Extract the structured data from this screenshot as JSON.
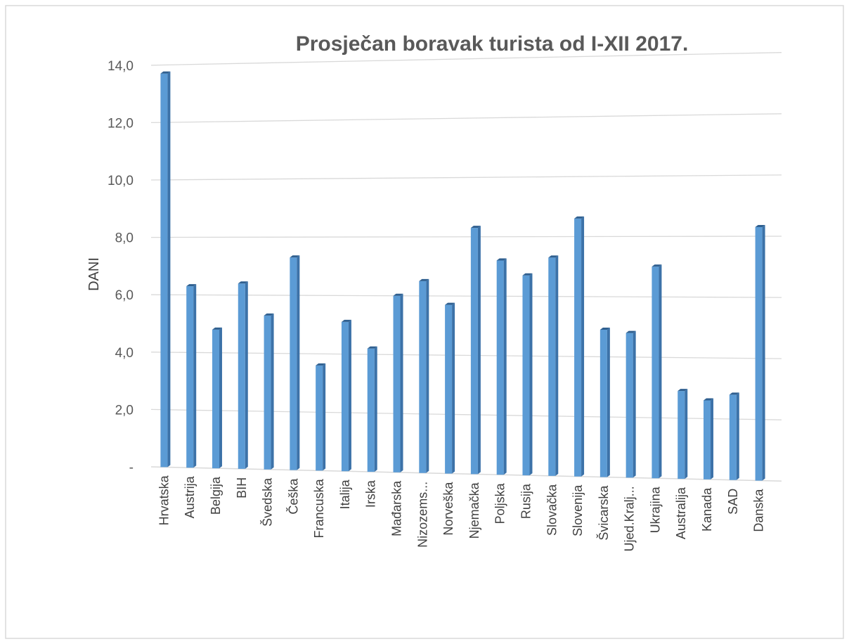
{
  "chart_data": {
    "type": "bar",
    "style": "3d-column",
    "title": "Prosječan boravak turista od I-XII 2017.",
    "xlabel": "",
    "ylabel": "DANI",
    "ylim": [
      0,
      14
    ],
    "yticks": [
      "-",
      "2,0",
      "4,0",
      "6,0",
      "8,0",
      "10,0",
      "12,0",
      "14,0"
    ],
    "grid": true,
    "legend": "none",
    "bar_color": "#5b9bd5",
    "categories": [
      "Hrvatska",
      "Austrija",
      "Belgija",
      "BIH",
      "Švedska",
      "Češka",
      "Francuska",
      "Italija",
      "Irska",
      "Mađarska",
      "Nizozems...",
      "Norveška",
      "Njemačka",
      "Poljska",
      "Rusija",
      "Slovačka",
      "Slovenija",
      "Švicarska",
      "Ujed.Kralj...",
      "Ukrajina",
      "Australija",
      "Kanada",
      "SAD",
      "Danska"
    ],
    "values": [
      13.7,
      6.3,
      4.8,
      6.4,
      5.3,
      7.3,
      3.6,
      5.1,
      4.2,
      6.0,
      6.5,
      5.7,
      8.3,
      7.2,
      6.7,
      7.3,
      8.6,
      4.9,
      4.8,
      7.0,
      2.9,
      2.6,
      2.8,
      8.3
    ]
  }
}
